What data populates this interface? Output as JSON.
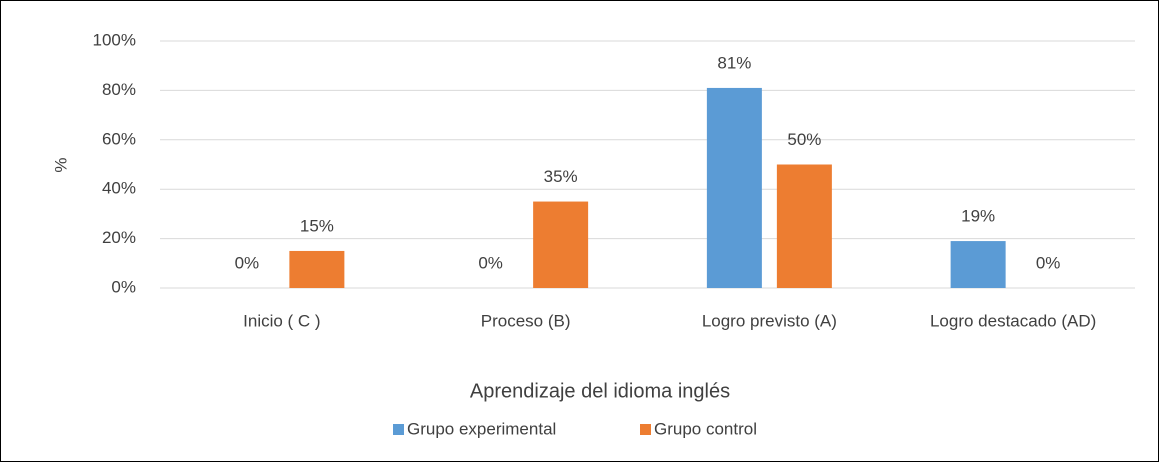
{
  "chart_data": {
    "type": "bar",
    "y_label": "%",
    "x_label": "Aprendizaje del idioma inglés",
    "categories": [
      "Inicio ( C )",
      "Proceso (B)",
      "Logro previsto (A)",
      "Logro destacado (AD)"
    ],
    "series": [
      {
        "name": "Grupo experimental",
        "color": "#5b9bd5",
        "values": [
          0,
          0,
          81,
          19
        ],
        "value_labels": [
          "0%",
          "0%",
          "81%",
          "19%"
        ]
      },
      {
        "name": "Grupo control",
        "color": "#ed7d31",
        "values": [
          15,
          35,
          50,
          0
        ],
        "value_labels": [
          "15%",
          "35%",
          "50%",
          "0%"
        ]
      }
    ],
    "ylim": [
      0,
      100
    ],
    "yticks": [
      {
        "value": 0,
        "label": "0%"
      },
      {
        "value": 20,
        "label": "20%"
      },
      {
        "value": 40,
        "label": "40%"
      },
      {
        "value": 60,
        "label": "60%"
      },
      {
        "value": 80,
        "label": "80%"
      },
      {
        "value": 100,
        "label": "100%"
      }
    ],
    "grid": true,
    "legend": "bottom"
  }
}
